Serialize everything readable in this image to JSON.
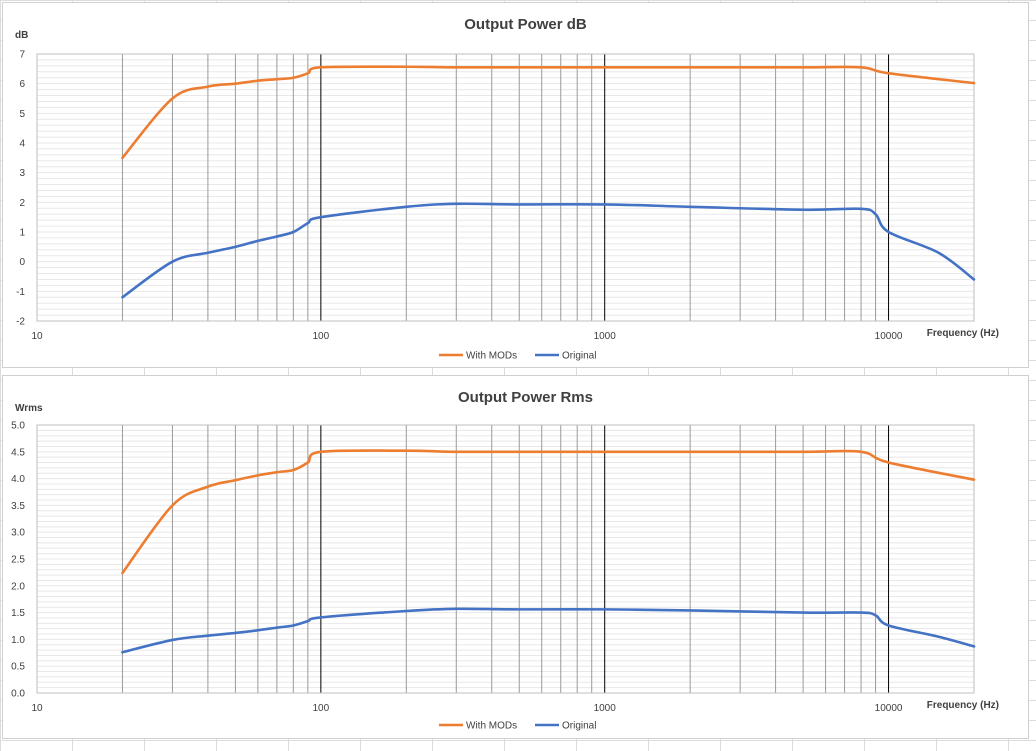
{
  "colors": {
    "with_mods": "#ed7d31",
    "original": "#4472c4",
    "minor_grid": "#e8e8e8",
    "decade_line": "#000000",
    "freq_line": "#9a9a9a"
  },
  "chart_data": [
    {
      "type": "line",
      "title": "Output  Power dB",
      "ylabel": "dB",
      "xlabel": "Frequency (Hz)",
      "xscale": "log",
      "xlim": [
        10,
        20000
      ],
      "ylim": [
        -2,
        7
      ],
      "yticks": [
        -2,
        -1,
        0,
        1,
        2,
        3,
        4,
        5,
        6,
        7
      ],
      "ytick_labels": [
        "-2",
        "-1",
        "0",
        "1",
        "2",
        "3",
        "4",
        "5",
        "6",
        "7"
      ],
      "xtick_labels": [
        "10",
        "100",
        "1000",
        "10000"
      ],
      "x_gridlines": [
        20,
        30,
        40,
        50,
        60,
        70,
        80,
        90,
        100,
        200,
        300,
        400,
        500,
        600,
        700,
        800,
        900,
        1000,
        2000,
        3000,
        4000,
        5000,
        6000,
        7000,
        8000,
        9000,
        10000,
        20000
      ],
      "legend": "bottom",
      "series": [
        {
          "name": "With MODs",
          "color": "#ed7d31",
          "x": [
            20,
            30,
            40,
            50,
            60,
            70,
            80,
            90,
            100,
            200,
            300,
            500,
            1000,
            2000,
            5000,
            8000,
            10000,
            20000
          ],
          "y": [
            3.5,
            5.5,
            5.9,
            6.0,
            6.1,
            6.15,
            6.2,
            6.35,
            6.55,
            6.57,
            6.55,
            6.55,
            6.55,
            6.55,
            6.55,
            6.55,
            6.35,
            6.02
          ]
        },
        {
          "name": "Original",
          "color": "#4472c4",
          "x": [
            20,
            30,
            40,
            50,
            60,
            70,
            80,
            90,
            100,
            200,
            300,
            500,
            1000,
            2000,
            5000,
            8000,
            9000,
            10000,
            15000,
            20000
          ],
          "y": [
            -1.2,
            0.0,
            0.3,
            0.5,
            0.7,
            0.85,
            1.0,
            1.3,
            1.5,
            1.85,
            1.95,
            1.93,
            1.93,
            1.85,
            1.75,
            1.78,
            1.6,
            1.0,
            0.3,
            -0.6
          ]
        }
      ]
    },
    {
      "type": "line",
      "title": "Output  Power Rms",
      "ylabel": "Wrms",
      "xlabel": "Frequency (Hz)",
      "xscale": "log",
      "xlim": [
        10,
        20000
      ],
      "ylim": [
        0,
        5
      ],
      "yticks": [
        0,
        0.5,
        1,
        1.5,
        2,
        2.5,
        3,
        3.5,
        4,
        4.5,
        5
      ],
      "ytick_labels": [
        "0.0",
        "0.5",
        "1.0",
        "1.5",
        "2.0",
        "2.5",
        "3.0",
        "3.5",
        "4.0",
        "4.5",
        "5.0"
      ],
      "xtick_labels": [
        "10",
        "100",
        "1000",
        "10000"
      ],
      "x_gridlines": [
        20,
        30,
        40,
        50,
        60,
        70,
        80,
        90,
        100,
        200,
        300,
        400,
        500,
        600,
        700,
        800,
        900,
        1000,
        2000,
        3000,
        4000,
        5000,
        6000,
        7000,
        8000,
        9000,
        10000,
        20000
      ],
      "legend": "bottom",
      "series": [
        {
          "name": "With MODs",
          "color": "#ed7d31",
          "x": [
            20,
            30,
            40,
            50,
            60,
            70,
            80,
            90,
            100,
            200,
            300,
            500,
            1000,
            2000,
            5000,
            8000,
            10000,
            20000
          ],
          "y": [
            2.24,
            3.5,
            3.85,
            3.97,
            4.06,
            4.12,
            4.16,
            4.3,
            4.5,
            4.52,
            4.5,
            4.5,
            4.5,
            4.5,
            4.5,
            4.5,
            4.3,
            3.98
          ]
        },
        {
          "name": "Original",
          "color": "#4472c4",
          "x": [
            20,
            30,
            40,
            50,
            60,
            70,
            80,
            90,
            100,
            200,
            300,
            500,
            1000,
            2000,
            5000,
            8000,
            9000,
            10000,
            15000,
            20000
          ],
          "y": [
            0.76,
            0.99,
            1.07,
            1.12,
            1.17,
            1.22,
            1.26,
            1.34,
            1.41,
            1.53,
            1.57,
            1.56,
            1.56,
            1.54,
            1.5,
            1.5,
            1.45,
            1.26,
            1.05,
            0.87
          ]
        }
      ]
    }
  ]
}
